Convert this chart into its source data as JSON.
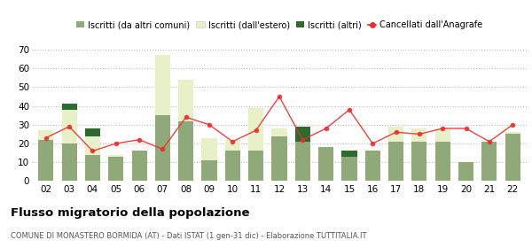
{
  "years": [
    "02",
    "03",
    "04",
    "05",
    "06",
    "07",
    "08",
    "09",
    "10",
    "11",
    "12",
    "13",
    "14",
    "15",
    "16",
    "17",
    "18",
    "19",
    "20",
    "21",
    "22"
  ],
  "iscritti_comuni": [
    22,
    20,
    14,
    13,
    16,
    35,
    32,
    11,
    16,
    16,
    24,
    21,
    18,
    13,
    16,
    21,
    21,
    21,
    10,
    21,
    25
  ],
  "iscritti_estero_light": [
    5,
    18,
    10,
    1,
    0,
    32,
    22,
    12,
    6,
    23,
    4,
    0,
    0,
    0,
    0,
    8,
    7,
    7,
    0,
    0,
    1
  ],
  "iscritti_altri": [
    0,
    3,
    4,
    0,
    0,
    0,
    0,
    0,
    0,
    0,
    0,
    8,
    0,
    3,
    0,
    0,
    0,
    0,
    0,
    0,
    0
  ],
  "cancellati": [
    23,
    29,
    16,
    20,
    22,
    17,
    34,
    30,
    21,
    27,
    45,
    22,
    28,
    38,
    20,
    26,
    25,
    28,
    28,
    21,
    30
  ],
  "color_comuni": "#8faa78",
  "color_estero_light": "#e8f0c8",
  "color_altri": "#2d6a2d",
  "color_cancellati": "#e83030",
  "legend_labels": [
    "Iscritti (da altri comuni)",
    "Iscritti (dall'estero)",
    "Iscritti (altri)",
    "Cancellati dall'Anagrafe"
  ],
  "ylim": [
    0,
    70
  ],
  "yticks": [
    0,
    10,
    20,
    30,
    40,
    50,
    60,
    70
  ],
  "title": "Flusso migratorio della popolazione",
  "subtitle": "COMUNE DI MONASTERO BORMIDA (AT) - Dati ISTAT (1 gen-31 dic) - Elaborazione TUTTITALIA.IT"
}
